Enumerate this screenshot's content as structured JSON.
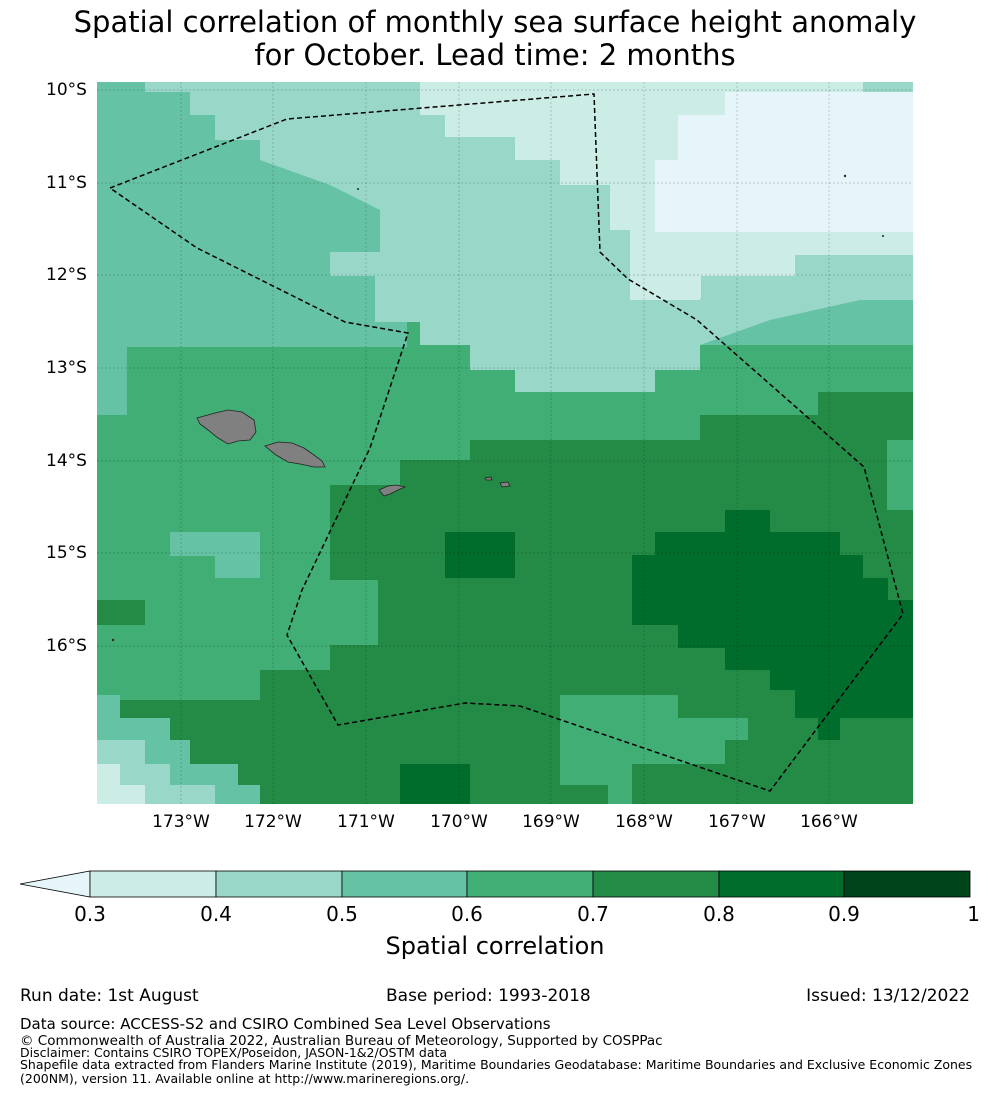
{
  "title": {
    "line1": "Spatial correlation of monthly sea surface height anomaly",
    "line2": "for October. Lead time: 2 months"
  },
  "map": {
    "lat_labels": [
      "10°S",
      "11°S",
      "12°S",
      "13°S",
      "14°S",
      "15°S",
      "16°S"
    ],
    "lon_labels": [
      "173°W",
      "172°W",
      "171°W",
      "170°W",
      "169°W",
      "168°W",
      "167°W",
      "166°W"
    ],
    "lon_range": [
      -173.9,
      -165.1
    ],
    "lat_range": [
      -17.7,
      -9.9
    ],
    "land_color": "#808080",
    "boundary_style": "dashed",
    "features": [
      "samoa-islands",
      "american-samoa",
      "swains-island",
      "tokelau-atolls",
      "eez-boundary"
    ]
  },
  "colorbar": {
    "label": "Spatial correlation",
    "ticks": [
      "0.3",
      "0.4",
      "0.5",
      "0.6",
      "0.7",
      "0.8",
      "0.9",
      "1"
    ],
    "extend": "min",
    "colors": [
      "#e5f5f9",
      "#ccece6",
      "#99d8c9",
      "#66c2a4",
      "#41ae76",
      "#238b45",
      "#006d2c",
      "#00441b"
    ]
  },
  "footer": {
    "run_date": "Run date: 1st August",
    "base_period": "Base period: 1993-2018",
    "issued": "Issued: 13/12/2022",
    "data_source": "Data source: ACCESS-S2 and CSIRO Combined Sea Level Observations",
    "copyright": "© Commonwealth of Australia 2022, Australian Bureau of Meteorology, Supported by COSPPac",
    "disclaimer": "Disclaimer: Contains CSIRO TOPEX/Poseidon, JASON-1&2/OSTM data",
    "shapefile1": "Shapefile data extracted from Flanders Marine Institute (2019), Maritime Boundaries Geodatabase: Maritime Boundaries and Exclusive Economic Zones",
    "shapefile2": "(200NM), version 11. Available online at http://www.marineregions.org/."
  }
}
